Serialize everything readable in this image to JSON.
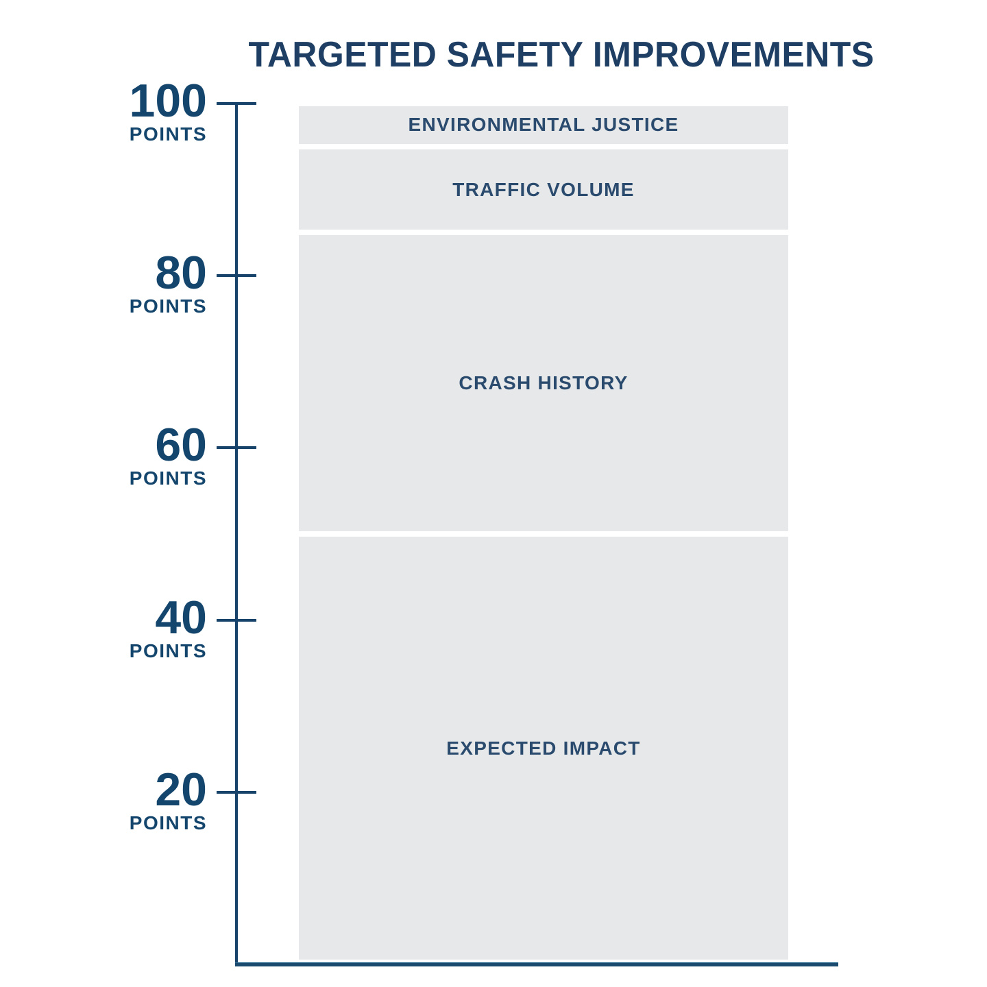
{
  "title": "TARGETED SAFETY IMPROVEMENTS",
  "axis": {
    "unit_label": "POINTS",
    "ticks": [
      100,
      80,
      60,
      40,
      20
    ],
    "min": 0,
    "max": 100
  },
  "segments": [
    {
      "label": "ENVIRONMENTAL JUSTICE",
      "points": 5,
      "from": 95,
      "to": 100
    },
    {
      "label": "TRAFFIC VOLUME",
      "points": 10,
      "from": 85,
      "to": 95
    },
    {
      "label": "CRASH HISTORY",
      "points": 35,
      "from": 50,
      "to": 85
    },
    {
      "label": "EXPECTED IMPACT",
      "points": 50,
      "from": 0,
      "to": 50
    }
  ],
  "colors": {
    "title_text": "#1e3f63",
    "tick_text": "#14466d",
    "segment_label_text": "#2a4a6e",
    "segment_fill": "#e6e8e9",
    "axis_line": "#17436a",
    "background": "#ffffff"
  },
  "chart_data": {
    "type": "bar",
    "stacked": true,
    "title": "TARGETED SAFETY IMPROVEMENTS",
    "categories": [
      "ENVIRONMENTAL JUSTICE",
      "TRAFFIC VOLUME",
      "CRASH HISTORY",
      "EXPECTED IMPACT"
    ],
    "values": [
      5,
      10,
      35,
      50
    ],
    "xlabel": "",
    "ylabel": "POINTS",
    "ylim": [
      0,
      100
    ],
    "yticks": [
      20,
      40,
      60,
      80,
      100
    ],
    "grid": false,
    "legend": false,
    "orientation": "vertical-stack"
  }
}
